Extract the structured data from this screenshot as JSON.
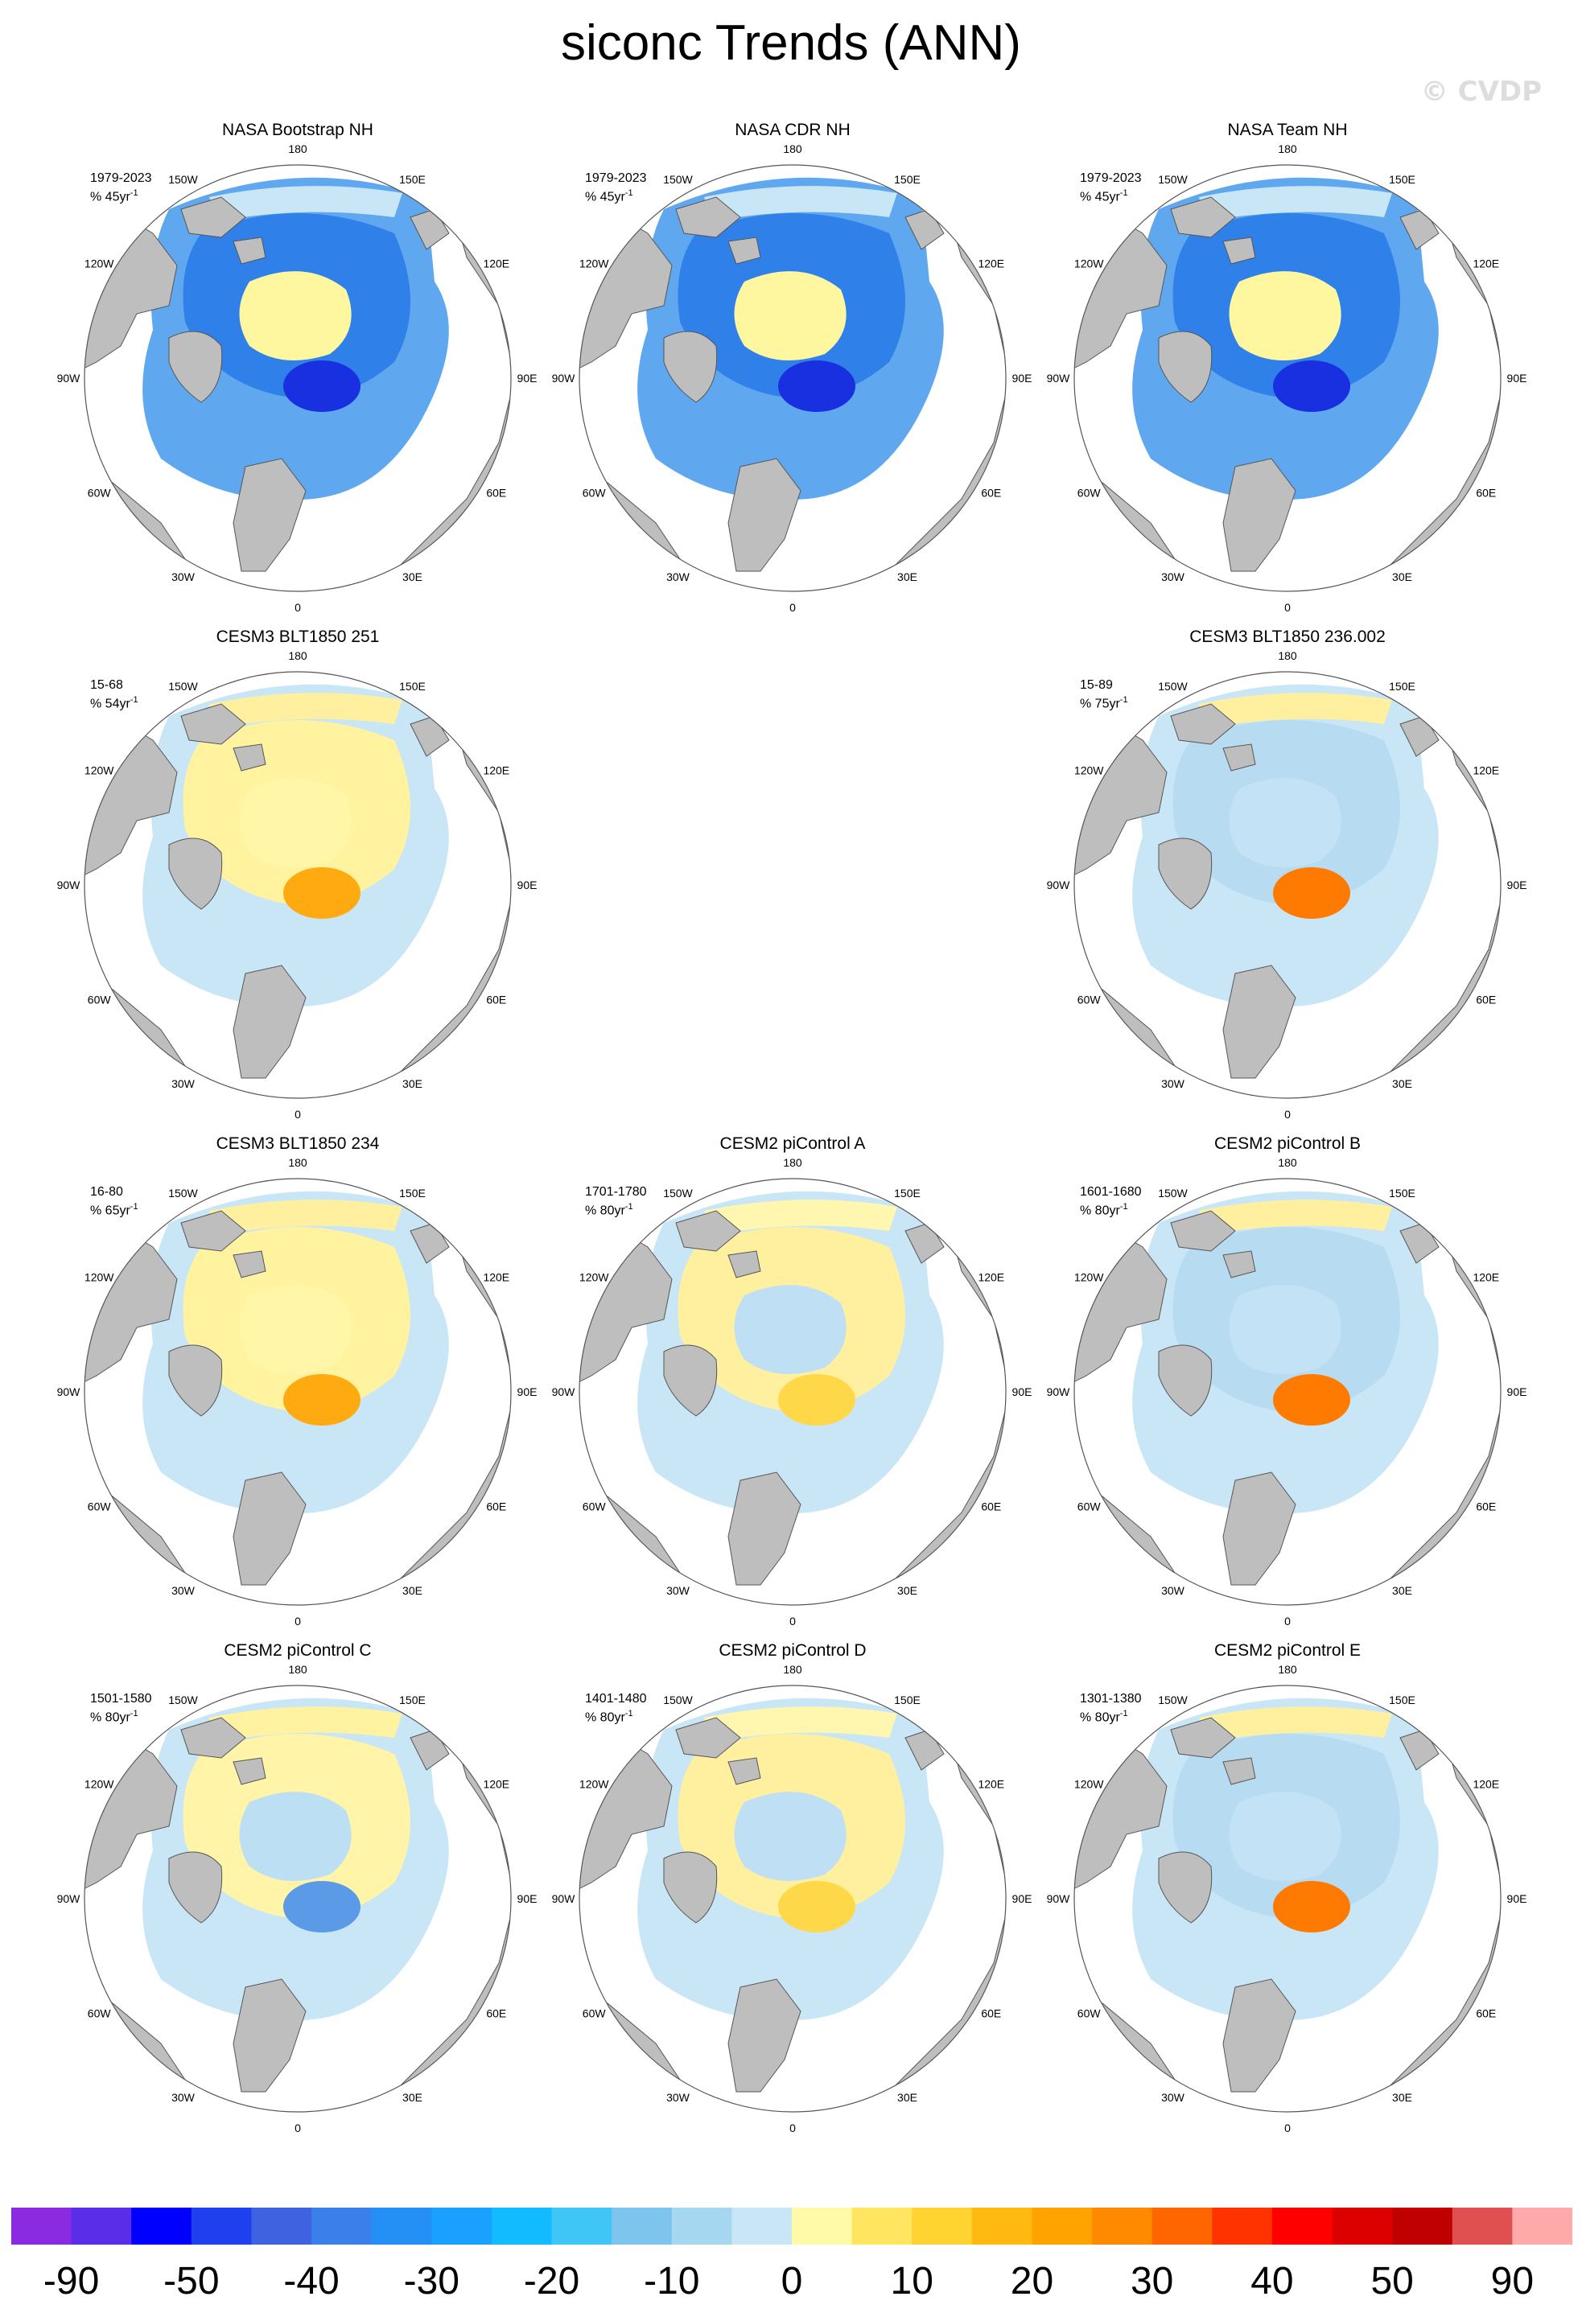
{
  "title": "siconc Trends (ANN)",
  "watermark": "© CVDP",
  "lon_labels": {
    "top": "180",
    "bottom": "0",
    "upper_right": "150E",
    "right_upper": "120E",
    "right": "90E",
    "right_lower": "60E",
    "lower_right": "30E",
    "upper_left": "150W",
    "left_upper": "120W",
    "left": "90W",
    "left_lower": "60W",
    "lower_left": "30W"
  },
  "panels": [
    {
      "title": "NASA Bootstrap NH",
      "period": "1979-2023",
      "rate": "% 45yr",
      "exp": "-1",
      "pattern": "obs_decline"
    },
    {
      "title": "NASA CDR NH",
      "period": "1979-2023",
      "rate": "% 45yr",
      "exp": "-1",
      "pattern": "obs_decline"
    },
    {
      "title": "NASA Team NH",
      "period": "1979-2023",
      "rate": "% 45yr",
      "exp": "-1",
      "pattern": "obs_decline"
    },
    {
      "title": "CESM3 BLT1850 251",
      "period": "15-68",
      "rate": "% 54yr",
      "exp": "-1",
      "pattern": "warm_center"
    },
    {
      "title": "",
      "period": "",
      "rate": "",
      "exp": "",
      "pattern": "empty"
    },
    {
      "title": "CESM3 BLT1850 236.002",
      "period": "15-89",
      "rate": "% 75yr",
      "exp": "-1",
      "pattern": "cool_center_warm_barents"
    },
    {
      "title": "CESM3 BLT1850 234",
      "period": "16-80",
      "rate": "% 65yr",
      "exp": "-1",
      "pattern": "warm_center"
    },
    {
      "title": "CESM2 piControl A",
      "period": "1701-1780",
      "rate": "% 80yr",
      "exp": "-1",
      "pattern": "mixed_light"
    },
    {
      "title": "CESM2 piControl B",
      "period": "1601-1680",
      "rate": "% 80yr",
      "exp": "-1",
      "pattern": "cool_center_warm_barents"
    },
    {
      "title": "CESM2 piControl C",
      "period": "1501-1580",
      "rate": "% 80yr",
      "exp": "-1",
      "pattern": "cool_center"
    },
    {
      "title": "CESM2 piControl D",
      "period": "1401-1480",
      "rate": "% 80yr",
      "exp": "-1",
      "pattern": "mixed_light"
    },
    {
      "title": "CESM2 piControl E",
      "period": "1301-1380",
      "rate": "% 80yr",
      "exp": "-1",
      "pattern": "cool_center_warm_barents"
    }
  ],
  "colorbar": {
    "colors": [
      "#8a2be2",
      "#5a2ee8",
      "#0000ff",
      "#1e40ee",
      "#3f63e0",
      "#3b7fea",
      "#2490f6",
      "#1aa0ff",
      "#12bbff",
      "#40c6f6",
      "#7ec5ee",
      "#a6d7f0",
      "#c9e6f6",
      "#fffaa8",
      "#ffe560",
      "#ffd430",
      "#ffb910",
      "#ffa300",
      "#ff8a00",
      "#ff6600",
      "#ff3300",
      "#ff0000",
      "#dd0000",
      "#c00000",
      "#e05050",
      "#ffaaaa"
    ],
    "labels": [
      "-90",
      "-50",
      "-40",
      "-30",
      "-20",
      "-10",
      "0",
      "10",
      "20",
      "30",
      "40",
      "50",
      "90"
    ]
  }
}
